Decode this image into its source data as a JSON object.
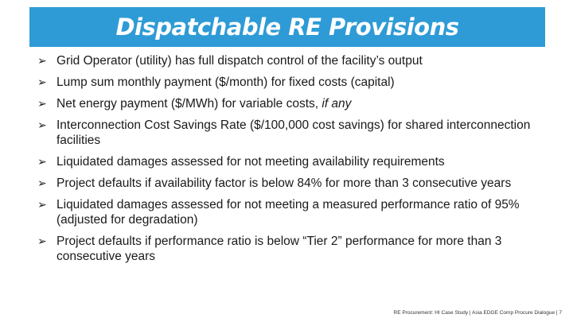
{
  "slide": {
    "title": "Dispatchable RE Provisions",
    "bullets": [
      {
        "pre": "Grid Operator (utility) has full dispatch control of the facility’s output",
        "em": "",
        "post": ""
      },
      {
        "pre": "Lump sum monthly payment ($/month) for fixed costs (capital)",
        "em": "",
        "post": ""
      },
      {
        "pre": "Net energy payment ($/MWh) for variable costs, ",
        "em": "if any",
        "post": ""
      },
      {
        "pre": "Interconnection Cost Savings Rate ($/100,000 cost savings) for shared interconnection facilities",
        "em": "",
        "post": ""
      },
      {
        "pre": "Liquidated damages assessed for not meeting availability requirements",
        "em": "",
        "post": ""
      },
      {
        "pre": "Project defaults if availability factor is below 84% for more than 3 consecutive years",
        "em": "",
        "post": ""
      },
      {
        "pre": "Liquidated damages assessed for not meeting a measured performance ratio of 95% (adjusted for degradation)",
        "em": "",
        "post": ""
      },
      {
        "pre": "Project defaults if performance ratio is below “Tier 2” performance for more than 3 consecutive years",
        "em": "",
        "post": ""
      }
    ],
    "footer": "RE Procurement: HI Case Study | Asia EDGE Comp Procure Dialogue | 7",
    "colors": {
      "title_bar": "#2e9bd6",
      "title_text": "#ffffff"
    },
    "bullet_icon": "arrow-bullet-icon"
  }
}
